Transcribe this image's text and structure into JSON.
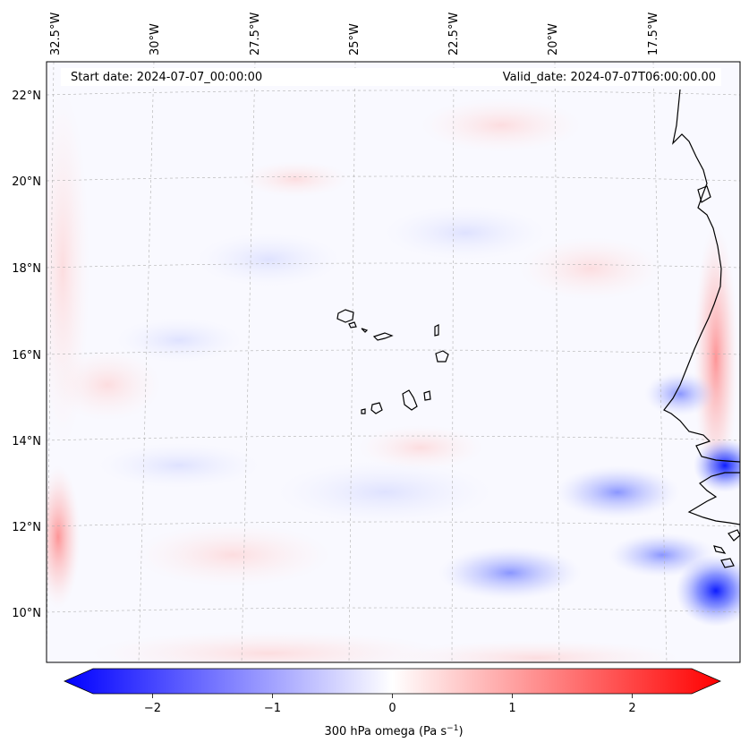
{
  "map": {
    "start_label": "Start date: 2024-07-07_00:00:00",
    "valid_label": "Valid_date: 2024-07-07T06:00:00.00",
    "lon_labels": [
      "32.5°W",
      "30°W",
      "27.5°W",
      "25°W",
      "22.5°W",
      "20°W",
      "17.5°W"
    ],
    "lat_labels": [
      "22°N",
      "20°N",
      "18°N",
      "16°N",
      "14°N",
      "12°N",
      "10°N"
    ],
    "colorbar": {
      "title": "300 hPa omega (Pa s",
      "title_sup": "−1",
      "title_end": ")",
      "tick_labels": [
        "−2",
        "−1",
        "0",
        "1",
        "2"
      ],
      "ticks": [
        -2,
        -1,
        0,
        1,
        2
      ],
      "range": [
        -2.6,
        2.6
      ],
      "colormap": "bwr",
      "colors": {
        "low": "#0000ff",
        "mid": "#ffffff",
        "high": "#ff0000"
      }
    },
    "colors": {
      "coastline": "#000000",
      "gridline": "#b0b0b0"
    }
  }
}
